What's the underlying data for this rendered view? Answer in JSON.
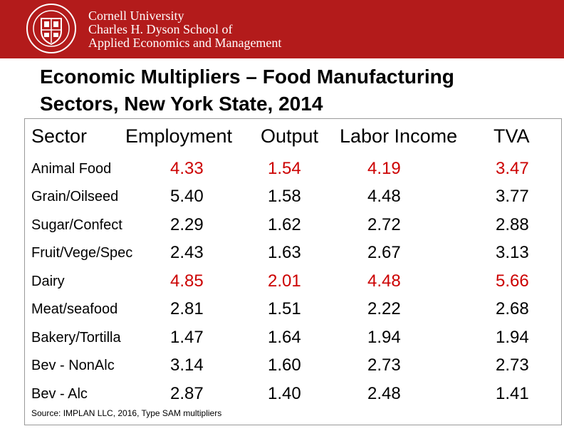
{
  "header": {
    "org_line1": "Cornell University",
    "org_line2": "Charles H. Dyson School of",
    "org_line3": "Applied Economics and Management",
    "brand_color": "#b31b1b"
  },
  "title": {
    "line1": "Economic Multipliers – Food Manufacturing",
    "line2": "Sectors, New York State, 2014"
  },
  "table": {
    "columns": [
      "Sector",
      "Employment",
      "Output",
      "Labor Income",
      "TVA"
    ],
    "rows": [
      {
        "sector": "Animal Food",
        "employment": "4.33",
        "output": "1.54",
        "labor_income": "4.19",
        "tva": "3.47"
      },
      {
        "sector": "Grain/Oilseed",
        "employment": "5.40",
        "output": "1.58",
        "labor_income": "4.48",
        "tva": "3.77"
      },
      {
        "sector": "Sugar/Confect",
        "employment": "2.29",
        "output": "1.62",
        "labor_income": "2.72",
        "tva": "2.88"
      },
      {
        "sector": "Fruit/Vege/Spec",
        "employment": "2.43",
        "output": "1.63",
        "labor_income": "2.67",
        "tva": "3.13"
      },
      {
        "sector": "Dairy",
        "employment": "4.85",
        "output": "2.01",
        "labor_income": "4.48",
        "tva": "5.66"
      },
      {
        "sector": "Meat/seafood",
        "employment": "2.81",
        "output": "1.51",
        "labor_income": "2.22",
        "tva": "2.68"
      },
      {
        "sector": "Bakery/Tortilla",
        "employment": "1.47",
        "output": "1.64",
        "labor_income": "1.94",
        "tva": "1.94"
      },
      {
        "sector": "Bev - NonAlc",
        "employment": "3.14",
        "output": "1.60",
        "labor_income": "2.73",
        "tva": "2.73"
      },
      {
        "sector": "Bev - Alc",
        "employment": "2.87",
        "output": "1.40",
        "labor_income": "2.48",
        "tva": "1.41"
      }
    ],
    "highlight_color": "#cc0000",
    "highlighted_rows": [
      0,
      4
    ]
  },
  "source": "Source: IMPLAN LLC, 2016, Type SAM multipliers"
}
